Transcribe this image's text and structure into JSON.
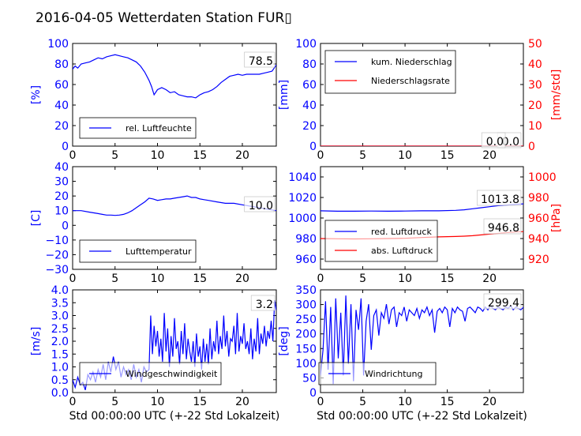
{
  "title": "2016-04-05 Wetterdaten Station FUR▯",
  "colors": {
    "primary": "#0000ff",
    "secondary": "#ff0000"
  },
  "chart_data": [
    {
      "type": "line",
      "ylabel": "[%]",
      "xlim": [
        0,
        24
      ],
      "ylim": [
        0,
        100
      ],
      "xticks": [
        "0",
        "5",
        "10",
        "15",
        "20"
      ],
      "yticks": [
        "0",
        "20",
        "40",
        "60",
        "80",
        "100"
      ],
      "legend": [
        "rel. Luftfeuchte"
      ],
      "last_value_label": "78.5",
      "series": [
        {
          "name": "rel. Luftfeuchte",
          "color": "#0000ff",
          "x": [
            0,
            0.3,
            0.6,
            1,
            1.5,
            2,
            2.5,
            3,
            3.5,
            4,
            4.5,
            5,
            5.5,
            6,
            6.5,
            7,
            7.5,
            8,
            8.5,
            9,
            9.3,
            9.6,
            10,
            10.5,
            11,
            11.5,
            12,
            12.5,
            13,
            13.5,
            14,
            14.5,
            15,
            15.5,
            16,
            16.5,
            17,
            17.5,
            18,
            18.5,
            19,
            19.5,
            20,
            20.5,
            21,
            21.5,
            22,
            22.5,
            23,
            23.5,
            24
          ],
          "y": [
            75,
            78,
            76,
            80,
            81,
            82,
            84,
            86,
            85,
            87,
            88,
            89,
            88,
            87,
            86,
            84,
            82,
            78,
            72,
            64,
            58,
            50,
            55,
            57,
            55,
            52,
            53,
            50,
            49,
            48,
            48,
            47,
            50,
            52,
            53,
            55,
            58,
            62,
            65,
            68,
            69,
            70,
            69,
            70,
            70,
            70,
            70,
            71,
            72,
            73,
            79
          ]
        }
      ]
    },
    {
      "type": "line",
      "ylabel": "[mm]",
      "y2label": "[mm/std]",
      "xlim": [
        0,
        24
      ],
      "ylim": [
        0,
        100
      ],
      "y2lim": [
        0,
        50
      ],
      "xticks": [
        "0",
        "5",
        "10",
        "15",
        "20"
      ],
      "yticks": [
        "0",
        "20",
        "40",
        "60",
        "80",
        "100"
      ],
      "y2ticks": [
        "0",
        "10",
        "20",
        "30",
        "40",
        "50"
      ],
      "legend": [
        "kum. Niederschlag",
        "Niederschlagsrate"
      ],
      "last_value_label": "0.0",
      "last_value_label2": "0.0",
      "series": [
        {
          "name": "kum. Niederschlag",
          "color": "#0000ff",
          "axis": "left",
          "x": [
            0,
            24
          ],
          "y": [
            0,
            0
          ]
        },
        {
          "name": "Niederschlagsrate",
          "color": "#ff0000",
          "axis": "right",
          "x": [
            0,
            24
          ],
          "y": [
            0,
            0
          ]
        }
      ]
    },
    {
      "type": "line",
      "ylabel": "[C]",
      "xlim": [
        0,
        24
      ],
      "ylim": [
        -30,
        40
      ],
      "xticks": [
        "0",
        "5",
        "10",
        "15",
        "20"
      ],
      "yticks": [
        "−30",
        "−20",
        "−10",
        "0",
        "10",
        "20",
        "30",
        "40"
      ],
      "legend": [
        "Lufttemperatur"
      ],
      "last_value_label": "10.0",
      "series": [
        {
          "name": "Lufttemperatur",
          "color": "#0000ff",
          "x": [
            0,
            1,
            2,
            3,
            3.5,
            4,
            4.5,
            5,
            5.5,
            6,
            6.5,
            7,
            7.5,
            8,
            8.5,
            9,
            9.5,
            10,
            10.5,
            11,
            11.5,
            12,
            12.5,
            13,
            13.5,
            14,
            14.5,
            15,
            15.5,
            16,
            17,
            18,
            19,
            20,
            21,
            22,
            23,
            24
          ],
          "y": [
            10,
            10,
            9,
            8,
            7.5,
            7,
            7,
            6.8,
            7,
            7.5,
            8.5,
            10,
            12,
            14,
            16,
            18.5,
            18,
            17,
            17.5,
            18,
            18,
            18.5,
            19,
            19.5,
            20,
            19,
            19,
            18,
            17.5,
            17,
            16,
            15,
            15,
            14,
            13,
            12,
            11,
            10
          ]
        }
      ]
    },
    {
      "type": "line",
      "ylabel": "",
      "y2label": "[hPa]",
      "xlim": [
        0,
        24
      ],
      "ylim": [
        950,
        1050
      ],
      "y2lim": [
        910,
        1010
      ],
      "xticks": [
        "0",
        "5",
        "10",
        "15",
        "20"
      ],
      "yticks": [
        "960",
        "980",
        "1000",
        "1020",
        "1040"
      ],
      "y2ticks": [
        "920",
        "940",
        "960",
        "980",
        "1000"
      ],
      "legend": [
        "red. Luftdruck",
        "abs. Luftdruck"
      ],
      "last_value_label": "1013.8",
      "last_value_label2": "946.8",
      "series": [
        {
          "name": "red. Luftdruck",
          "color": "#0000ff",
          "axis": "left",
          "x": [
            0,
            2,
            4,
            6,
            8,
            10,
            12,
            14,
            16,
            17,
            18,
            19,
            20,
            21,
            22,
            23,
            24
          ],
          "y": [
            1007,
            1006.6,
            1006.6,
            1006.8,
            1006.6,
            1006.8,
            1007,
            1007,
            1007.5,
            1008,
            1009,
            1010,
            1011,
            1012,
            1012.6,
            1013.2,
            1013.8
          ]
        },
        {
          "name": "abs. Luftdruck",
          "color": "#ff0000",
          "axis": "right",
          "x": [
            0,
            2,
            4,
            6,
            8,
            10,
            12,
            14,
            16,
            17,
            18,
            19,
            20,
            21,
            22,
            23,
            24
          ],
          "y": [
            940,
            939.8,
            939.6,
            939.8,
            940,
            940.2,
            941,
            941.6,
            942,
            942.3,
            942.8,
            943.5,
            944.3,
            945,
            945.8,
            946.3,
            946.8
          ]
        }
      ]
    },
    {
      "type": "line",
      "ylabel": "[m/s]",
      "xlabel": "Std 00:00:00 UTC (+-22 Std Lokalzeit)",
      "xlim": [
        0,
        24
      ],
      "ylim": [
        0,
        4
      ],
      "xticks": [
        "0",
        "5",
        "10",
        "15",
        "20"
      ],
      "yticks": [
        "0.0",
        "0.5",
        "1.0",
        "1.5",
        "2.0",
        "2.5",
        "3.0",
        "3.5",
        "4.0"
      ],
      "legend": [
        "Windgeschwindigkeit"
      ],
      "last_value_label": "3.2",
      "series": [
        {
          "name": "Windgeschwindigkeit",
          "color": "#0000ff",
          "x": [
            0,
            0.3,
            0.6,
            0.9,
            1.2,
            1.5,
            1.8,
            2.1,
            2.4,
            2.7,
            3,
            3.3,
            3.6,
            3.9,
            4.2,
            4.5,
            4.8,
            5.1,
            5.4,
            5.7,
            6,
            6.3,
            6.6,
            6.9,
            7.2,
            7.5,
            7.8,
            8.1,
            8.4,
            8.7,
            9,
            9.2,
            9.4,
            9.6,
            9.8,
            10,
            10.2,
            10.4,
            10.6,
            10.8,
            11,
            11.2,
            11.4,
            11.6,
            11.8,
            12,
            12.2,
            12.4,
            12.6,
            12.8,
            13,
            13.2,
            13.4,
            13.6,
            13.8,
            14,
            14.2,
            14.4,
            14.6,
            14.8,
            15,
            15.2,
            15.4,
            15.6,
            15.8,
            16,
            16.2,
            16.4,
            16.6,
            16.8,
            17,
            17.2,
            17.4,
            17.6,
            17.8,
            18,
            18.2,
            18.4,
            18.6,
            18.8,
            19,
            19.2,
            19.4,
            19.6,
            19.8,
            20,
            20.2,
            20.4,
            20.6,
            20.8,
            21,
            21.2,
            21.4,
            21.6,
            21.8,
            22,
            22.2,
            22.4,
            22.6,
            22.8,
            23,
            23.2,
            23.4,
            23.6,
            23.8,
            24
          ],
          "y": [
            0.5,
            0.2,
            0.6,
            0.3,
            0.4,
            0.1,
            0.7,
            0.5,
            0.8,
            0.4,
            0.9,
            0.6,
            1.1,
            0.5,
            1.2,
            0.8,
            1.4,
            0.9,
            1.2,
            0.6,
            1.0,
            0.7,
            0.9,
            0.5,
            1.1,
            0.6,
            0.9,
            0.4,
            1.0,
            0.8,
            0.9,
            3.0,
            1.5,
            2.6,
            1.8,
            2.4,
            1.4,
            2.1,
            1.2,
            3.1,
            1.6,
            2.5,
            1.0,
            2.2,
            1.4,
            2.9,
            1.7,
            2.0,
            1.1,
            2.4,
            1.5,
            2.7,
            1.3,
            2.1,
            1.6,
            1.2,
            2.0,
            1.0,
            2.3,
            1.4,
            1.8,
            0.9,
            2.1,
            1.2,
            1.9,
            1.1,
            2.5,
            1.3,
            2.0,
            1.6,
            2.8,
            1.5,
            2.2,
            1.7,
            3.0,
            1.8,
            2.4,
            1.4,
            2.1,
            2.0,
            2.6,
            1.5,
            3.1,
            1.6,
            2.2,
            1.9,
            2.7,
            1.7,
            2.0,
            1.5,
            2.5,
            1.3,
            2.1,
            1.6,
            2.9,
            1.5,
            2.3,
            1.9,
            2.6,
            1.8,
            2.4,
            2.1,
            2.8,
            2.0,
            3.6,
            3.2
          ]
        }
      ]
    },
    {
      "type": "line",
      "ylabel": "[deg]",
      "xlabel": "Std 00:00:00 UTC (+-22 Std Lokalzeit)",
      "xlim": [
        0,
        24
      ],
      "ylim": [
        0,
        360
      ],
      "xticks": [
        "0",
        "5",
        "10",
        "15",
        "20"
      ],
      "yticks": [
        "0",
        "50",
        "100",
        "150",
        "200",
        "250",
        "300",
        "350"
      ],
      "legend": [
        "Windrichtung"
      ],
      "last_value_label": "299.4",
      "series": [
        {
          "name": "Windrichtung",
          "color": "#0000ff",
          "x": [
            0,
            0.3,
            0.6,
            0.9,
            1.2,
            1.5,
            1.8,
            2.1,
            2.4,
            2.7,
            3,
            3.3,
            3.6,
            3.9,
            4.2,
            4.5,
            4.8,
            5.1,
            5.4,
            5.7,
            6,
            6.3,
            6.6,
            6.9,
            7.2,
            7.5,
            7.8,
            8.1,
            8.4,
            8.7,
            9,
            9.3,
            9.6,
            9.9,
            10.2,
            10.5,
            10.8,
            11.1,
            11.4,
            11.7,
            12,
            12.3,
            12.6,
            12.9,
            13.2,
            13.5,
            13.8,
            14.1,
            14.4,
            14.7,
            15,
            15.3,
            15.6,
            15.9,
            16.2,
            16.5,
            16.8,
            17.1,
            17.4,
            17.7,
            18,
            18.3,
            18.6,
            18.9,
            19.2,
            19.5,
            19.8,
            20.1,
            20.4,
            20.7,
            21,
            21.3,
            21.6,
            21.9,
            22.2,
            22.5,
            22.8,
            23.1,
            23.4,
            23.7,
            24
          ],
          "y": [
            60,
            150,
            320,
            80,
            300,
            30,
            330,
            120,
            280,
            60,
            340,
            100,
            310,
            40,
            290,
            220,
            330,
            60,
            250,
            310,
            150,
            270,
            290,
            200,
            280,
            260,
            310,
            240,
            290,
            300,
            230,
            280,
            270,
            300,
            250,
            290,
            280,
            270,
            295,
            260,
            290,
            280,
            300,
            270,
            290,
            210,
            285,
            295,
            280,
            300,
            290,
            230,
            295,
            280,
            300,
            290,
            285,
            250,
            295,
            300,
            290,
            280,
            300,
            295,
            285,
            300,
            290,
            305,
            295,
            290,
            300,
            295,
            290,
            300,
            295,
            305,
            290,
            300,
            295,
            290,
            299
          ]
        }
      ]
    }
  ]
}
